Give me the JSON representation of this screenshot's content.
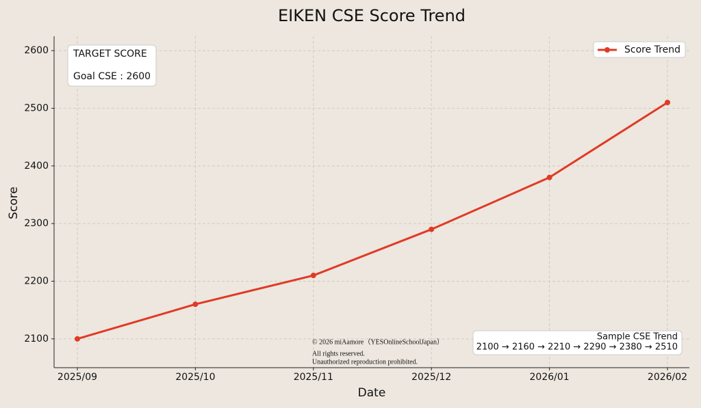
{
  "chart_data": {
    "type": "line",
    "title": "EIKEN CSE Score Trend",
    "x_label": "Date",
    "y_label": "Score",
    "categories": [
      "2025/09",
      "2025/10",
      "2025/11",
      "2025/12",
      "2026/01",
      "2026/02"
    ],
    "series": [
      {
        "name": "Score Trend",
        "color": "#e03a26",
        "values": [
          2100,
          2160,
          2210,
          2290,
          2380,
          2510
        ]
      }
    ],
    "ylim": [
      2050,
      2625
    ],
    "yticks": [
      2100,
      2200,
      2300,
      2400,
      2500,
      2600
    ],
    "grid": true,
    "legend": "upper right",
    "target_box": {
      "title": "TARGET SCORE",
      "text": "Goal CSE : 2600"
    },
    "summary_box": {
      "title": "Sample CSE Trend",
      "text": "2100 → 2160 → 2210 → 2290 → 2380 → 2510"
    },
    "copyright": [
      "© 2026 miAamore（YESOnlineSchoolJapan）",
      "All rights reserved.",
      "Unauthorized reproduction prohibited."
    ]
  }
}
